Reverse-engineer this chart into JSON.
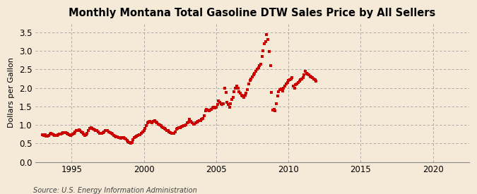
{
  "title": "Monthly Montana Total Gasoline DTW Sales Price by All Sellers",
  "ylabel": "Dollars per Gallon",
  "source": "Source: U.S. Energy Information Administration",
  "xlim": [
    1992.5,
    2022.5
  ],
  "ylim": [
    0.0,
    3.75
  ],
  "yticks": [
    0.0,
    0.5,
    1.0,
    1.5,
    2.0,
    2.5,
    3.0,
    3.5
  ],
  "xticks": [
    1995,
    2000,
    2005,
    2010,
    2015,
    2020
  ],
  "marker_color": "#cc0000",
  "background_color": "#f5ead8",
  "grid_color": "#999999",
  "data": [
    [
      1993.0,
      0.73
    ],
    [
      1993.08,
      0.72
    ],
    [
      1993.17,
      0.73
    ],
    [
      1993.25,
      0.7
    ],
    [
      1993.33,
      0.69
    ],
    [
      1993.42,
      0.72
    ],
    [
      1993.5,
      0.76
    ],
    [
      1993.58,
      0.77
    ],
    [
      1993.67,
      0.75
    ],
    [
      1993.75,
      0.73
    ],
    [
      1993.83,
      0.72
    ],
    [
      1993.92,
      0.71
    ],
    [
      1994.0,
      0.72
    ],
    [
      1994.08,
      0.74
    ],
    [
      1994.17,
      0.76
    ],
    [
      1994.25,
      0.75
    ],
    [
      1994.33,
      0.77
    ],
    [
      1994.42,
      0.79
    ],
    [
      1994.5,
      0.8
    ],
    [
      1994.58,
      0.79
    ],
    [
      1994.67,
      0.77
    ],
    [
      1994.75,
      0.76
    ],
    [
      1994.83,
      0.73
    ],
    [
      1994.92,
      0.72
    ],
    [
      1995.0,
      0.73
    ],
    [
      1995.08,
      0.75
    ],
    [
      1995.17,
      0.78
    ],
    [
      1995.25,
      0.82
    ],
    [
      1995.33,
      0.84
    ],
    [
      1995.42,
      0.85
    ],
    [
      1995.5,
      0.86
    ],
    [
      1995.58,
      0.84
    ],
    [
      1995.67,
      0.82
    ],
    [
      1995.75,
      0.8
    ],
    [
      1995.83,
      0.76
    ],
    [
      1995.92,
      0.72
    ],
    [
      1996.0,
      0.74
    ],
    [
      1996.08,
      0.78
    ],
    [
      1996.17,
      0.85
    ],
    [
      1996.25,
      0.9
    ],
    [
      1996.33,
      0.93
    ],
    [
      1996.42,
      0.91
    ],
    [
      1996.5,
      0.88
    ],
    [
      1996.58,
      0.87
    ],
    [
      1996.67,
      0.85
    ],
    [
      1996.75,
      0.84
    ],
    [
      1996.83,
      0.82
    ],
    [
      1996.92,
      0.78
    ],
    [
      1997.0,
      0.77
    ],
    [
      1997.08,
      0.78
    ],
    [
      1997.17,
      0.8
    ],
    [
      1997.25,
      0.82
    ],
    [
      1997.33,
      0.84
    ],
    [
      1997.42,
      0.85
    ],
    [
      1997.5,
      0.84
    ],
    [
      1997.58,
      0.82
    ],
    [
      1997.67,
      0.8
    ],
    [
      1997.75,
      0.78
    ],
    [
      1997.83,
      0.75
    ],
    [
      1997.92,
      0.72
    ],
    [
      1998.0,
      0.7
    ],
    [
      1998.08,
      0.68
    ],
    [
      1998.17,
      0.67
    ],
    [
      1998.25,
      0.66
    ],
    [
      1998.33,
      0.65
    ],
    [
      1998.42,
      0.64
    ],
    [
      1998.5,
      0.65
    ],
    [
      1998.58,
      0.65
    ],
    [
      1998.67,
      0.63
    ],
    [
      1998.75,
      0.62
    ],
    [
      1998.83,
      0.58
    ],
    [
      1998.92,
      0.55
    ],
    [
      1999.0,
      0.53
    ],
    [
      1999.08,
      0.5
    ],
    [
      1999.17,
      0.53
    ],
    [
      1999.25,
      0.6
    ],
    [
      1999.33,
      0.65
    ],
    [
      1999.42,
      0.68
    ],
    [
      1999.5,
      0.7
    ],
    [
      1999.58,
      0.72
    ],
    [
      1999.67,
      0.73
    ],
    [
      1999.75,
      0.74
    ],
    [
      1999.83,
      0.78
    ],
    [
      1999.92,
      0.82
    ],
    [
      2000.0,
      0.85
    ],
    [
      2000.08,
      0.9
    ],
    [
      2000.17,
      0.98
    ],
    [
      2000.25,
      1.05
    ],
    [
      2000.33,
      1.08
    ],
    [
      2000.42,
      1.1
    ],
    [
      2000.5,
      1.07
    ],
    [
      2000.58,
      1.05
    ],
    [
      2000.67,
      1.1
    ],
    [
      2000.75,
      1.12
    ],
    [
      2000.83,
      1.08
    ],
    [
      2000.92,
      1.05
    ],
    [
      2001.0,
      1.02
    ],
    [
      2001.08,
      1.0
    ],
    [
      2001.17,
      0.98
    ],
    [
      2001.25,
      0.95
    ],
    [
      2001.33,
      0.92
    ],
    [
      2001.42,
      0.9
    ],
    [
      2001.5,
      0.88
    ],
    [
      2001.58,
      0.85
    ],
    [
      2001.67,
      0.84
    ],
    [
      2001.75,
      0.82
    ],
    [
      2001.83,
      0.8
    ],
    [
      2001.92,
      0.78
    ],
    [
      2002.0,
      0.77
    ],
    [
      2002.08,
      0.78
    ],
    [
      2002.17,
      0.82
    ],
    [
      2002.25,
      0.88
    ],
    [
      2002.33,
      0.9
    ],
    [
      2002.42,
      0.92
    ],
    [
      2002.5,
      0.93
    ],
    [
      2002.58,
      0.95
    ],
    [
      2002.67,
      0.97
    ],
    [
      2002.75,
      0.98
    ],
    [
      2002.83,
      0.99
    ],
    [
      2002.92,
      1.0
    ],
    [
      2003.0,
      1.05
    ],
    [
      2003.08,
      1.08
    ],
    [
      2003.17,
      1.15
    ],
    [
      2003.25,
      1.1
    ],
    [
      2003.33,
      1.05
    ],
    [
      2003.42,
      1.03
    ],
    [
      2003.5,
      1.02
    ],
    [
      2003.58,
      1.05
    ],
    [
      2003.67,
      1.08
    ],
    [
      2003.75,
      1.1
    ],
    [
      2003.83,
      1.12
    ],
    [
      2003.92,
      1.12
    ],
    [
      2004.0,
      1.15
    ],
    [
      2004.08,
      1.18
    ],
    [
      2004.17,
      1.25
    ],
    [
      2004.25,
      1.38
    ],
    [
      2004.33,
      1.42
    ],
    [
      2004.42,
      1.4
    ],
    [
      2004.5,
      1.38
    ],
    [
      2004.58,
      1.4
    ],
    [
      2004.67,
      1.42
    ],
    [
      2004.75,
      1.45
    ],
    [
      2004.83,
      1.47
    ],
    [
      2004.92,
      1.45
    ],
    [
      2005.0,
      1.48
    ],
    [
      2005.08,
      1.55
    ],
    [
      2005.17,
      1.65
    ],
    [
      2005.25,
      1.62
    ],
    [
      2005.33,
      1.58
    ],
    [
      2005.42,
      1.55
    ],
    [
      2005.5,
      1.58
    ],
    [
      2005.58,
      2.0
    ],
    [
      2005.67,
      1.88
    ],
    [
      2005.75,
      1.62
    ],
    [
      2005.83,
      1.55
    ],
    [
      2005.92,
      1.48
    ],
    [
      2006.0,
      1.58
    ],
    [
      2006.08,
      1.68
    ],
    [
      2006.17,
      1.75
    ],
    [
      2006.25,
      1.9
    ],
    [
      2006.33,
      2.0
    ],
    [
      2006.42,
      2.05
    ],
    [
      2006.5,
      2.0
    ],
    [
      2006.58,
      1.9
    ],
    [
      2006.67,
      1.85
    ],
    [
      2006.75,
      1.8
    ],
    [
      2006.83,
      1.78
    ],
    [
      2006.92,
      1.75
    ],
    [
      2007.0,
      1.8
    ],
    [
      2007.08,
      1.85
    ],
    [
      2007.17,
      1.95
    ],
    [
      2007.25,
      2.1
    ],
    [
      2007.33,
      2.2
    ],
    [
      2007.42,
      2.25
    ],
    [
      2007.5,
      2.3
    ],
    [
      2007.58,
      2.35
    ],
    [
      2007.67,
      2.4
    ],
    [
      2007.75,
      2.45
    ],
    [
      2007.83,
      2.5
    ],
    [
      2007.92,
      2.55
    ],
    [
      2008.0,
      2.6
    ],
    [
      2008.08,
      2.65
    ],
    [
      2008.17,
      2.85
    ],
    [
      2008.25,
      3.0
    ],
    [
      2008.33,
      3.2
    ],
    [
      2008.42,
      3.25
    ],
    [
      2008.5,
      3.45
    ],
    [
      2008.58,
      3.3
    ],
    [
      2008.67,
      2.98
    ],
    [
      2008.75,
      2.6
    ],
    [
      2008.83,
      1.88
    ],
    [
      2008.92,
      1.4
    ],
    [
      2009.0,
      1.42
    ],
    [
      2009.08,
      1.38
    ],
    [
      2009.17,
      1.58
    ],
    [
      2009.25,
      1.78
    ],
    [
      2009.33,
      1.9
    ],
    [
      2009.42,
      1.95
    ],
    [
      2009.5,
      1.98
    ],
    [
      2009.58,
      1.92
    ],
    [
      2009.67,
      2.0
    ],
    [
      2009.75,
      2.05
    ],
    [
      2009.83,
      2.1
    ],
    [
      2009.92,
      2.15
    ],
    [
      2010.0,
      2.2
    ],
    [
      2010.08,
      2.22
    ],
    [
      2010.17,
      2.25
    ],
    [
      2010.25,
      2.28
    ],
    [
      2010.33,
      2.05
    ],
    [
      2010.42,
      2.0
    ],
    [
      2010.5,
      2.08
    ],
    [
      2010.58,
      2.1
    ],
    [
      2010.67,
      2.15
    ],
    [
      2010.75,
      2.18
    ],
    [
      2010.83,
      2.22
    ],
    [
      2010.92,
      2.25
    ],
    [
      2011.0,
      2.28
    ],
    [
      2011.08,
      2.35
    ],
    [
      2011.17,
      2.45
    ],
    [
      2011.25,
      2.4
    ],
    [
      2011.33,
      2.38
    ],
    [
      2011.42,
      2.35
    ],
    [
      2011.5,
      2.32
    ],
    [
      2011.58,
      2.3
    ],
    [
      2011.67,
      2.28
    ],
    [
      2011.75,
      2.25
    ],
    [
      2011.83,
      2.22
    ],
    [
      2011.92,
      2.18
    ]
  ]
}
